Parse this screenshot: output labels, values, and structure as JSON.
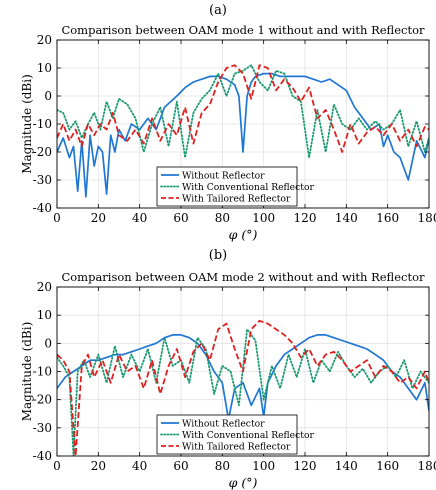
{
  "chart_data": [
    {
      "panel_label": "(a)",
      "type": "line",
      "title": "Comparison between OAM mode 1 without and with Reflector",
      "xlabel": "φ (°)",
      "ylabel": "Magnitude (dBi)",
      "xlim": [
        0,
        180
      ],
      "ylim": [
        -40,
        20
      ],
      "xticks": [
        0,
        20,
        40,
        60,
        80,
        100,
        120,
        140,
        160,
        180
      ],
      "yticks": [
        -40,
        -30,
        -20,
        -10,
        0,
        10,
        20
      ],
      "grid": true,
      "legend_position": "bottom-center",
      "series": [
        {
          "name": "Without Reflector",
          "color": "#1f77d4",
          "style": "solid",
          "x": [
            0,
            3,
            6,
            8,
            10,
            12,
            14,
            16,
            18,
            20,
            22,
            24,
            26,
            28,
            30,
            33,
            36,
            40,
            44,
            48,
            52,
            55,
            58,
            62,
            66,
            70,
            74,
            78,
            82,
            86,
            88,
            90,
            92,
            94,
            96,
            100,
            104,
            108,
            112,
            116,
            120,
            124,
            128,
            132,
            136,
            140,
            144,
            148,
            152,
            156,
            158,
            160,
            163,
            166,
            170,
            174,
            178,
            180
          ],
          "y": [
            -20,
            -15,
            -22,
            -18,
            -34,
            -16,
            -36,
            -14,
            -25,
            -18,
            -20,
            -35,
            -14,
            -20,
            -12,
            -16,
            -10,
            -12,
            -8,
            -12,
            -4,
            -2,
            0,
            3,
            5,
            6,
            7,
            7,
            6,
            4,
            0,
            -20,
            0,
            5,
            7,
            8,
            8,
            7,
            7,
            7,
            7,
            6,
            5,
            6,
            4,
            2,
            -4,
            -8,
            -12,
            -10,
            -18,
            -14,
            -20,
            -22,
            -30,
            -16,
            -22,
            -15
          ]
        },
        {
          "name": "With Conventional Reflector",
          "color": "#1a9a72",
          "style": "dotted",
          "x": [
            0,
            3,
            6,
            9,
            12,
            15,
            18,
            21,
            24,
            27,
            30,
            34,
            38,
            42,
            46,
            50,
            54,
            58,
            62,
            66,
            70,
            74,
            78,
            82,
            86,
            90,
            94,
            98,
            102,
            106,
            110,
            114,
            118,
            122,
            126,
            130,
            134,
            138,
            142,
            146,
            150,
            154,
            158,
            162,
            166,
            170,
            174,
            178,
            180
          ],
          "y": [
            -5,
            -6,
            -12,
            -9,
            -15,
            -10,
            -6,
            -12,
            -2,
            -8,
            -1,
            -3,
            -8,
            -20,
            -10,
            -4,
            -18,
            -2,
            -22,
            -6,
            -1,
            2,
            8,
            0,
            8,
            9,
            11,
            5,
            2,
            9,
            8,
            0,
            -2,
            -22,
            -5,
            -20,
            -3,
            -10,
            -12,
            -8,
            -12,
            -9,
            -12,
            -10,
            -5,
            -18,
            -9,
            -20,
            -15
          ]
        },
        {
          "name": "With Tailored Reflector",
          "color": "#e02020",
          "style": "dashed",
          "x": [
            0,
            3,
            6,
            9,
            12,
            15,
            18,
            21,
            24,
            27,
            30,
            34,
            38,
            42,
            46,
            50,
            54,
            58,
            62,
            66,
            70,
            74,
            78,
            82,
            86,
            90,
            94,
            98,
            102,
            106,
            110,
            114,
            118,
            122,
            126,
            130,
            134,
            138,
            142,
            146,
            150,
            154,
            158,
            162,
            166,
            170,
            174,
            178,
            180
          ],
          "y": [
            -15,
            -10,
            -16,
            -12,
            -18,
            -10,
            -14,
            -10,
            -12,
            -6,
            -14,
            -16,
            -12,
            -17,
            -8,
            -16,
            -10,
            -14,
            -4,
            -17,
            -6,
            -3,
            5,
            10,
            11,
            8,
            -1,
            11,
            10,
            2,
            6,
            3,
            -2,
            3,
            -8,
            -5,
            -12,
            -20,
            -10,
            -17,
            -13,
            -11,
            -14,
            -10,
            -16,
            -12,
            -18,
            -11,
            -12
          ]
        }
      ]
    },
    {
      "panel_label": "(b)",
      "type": "line",
      "title": "Comparison between OAM mode 2 without and with Reflector",
      "xlabel": "φ (°)",
      "ylabel": "Magnitude (dBi)",
      "xlim": [
        0,
        180
      ],
      "ylim": [
        -40,
        20
      ],
      "xticks": [
        0,
        20,
        40,
        60,
        80,
        100,
        120,
        140,
        160,
        180
      ],
      "yticks": [
        -40,
        -30,
        -20,
        -10,
        0,
        10,
        20
      ],
      "grid": true,
      "legend_position": "bottom-center",
      "series": [
        {
          "name": "Without Reflector",
          "color": "#1f77d4",
          "style": "solid",
          "x": [
            0,
            4,
            8,
            12,
            16,
            20,
            24,
            28,
            32,
            36,
            40,
            44,
            48,
            52,
            56,
            60,
            64,
            68,
            72,
            76,
            80,
            83,
            86,
            90,
            94,
            98,
            100,
            102,
            106,
            110,
            114,
            118,
            122,
            126,
            130,
            134,
            138,
            142,
            146,
            150,
            154,
            158,
            162,
            166,
            170,
            174,
            178,
            180
          ],
          "y": [
            -16,
            -12,
            -10,
            -8,
            -6,
            -6,
            -5,
            -4,
            -4,
            -3,
            -2,
            -1,
            0,
            2,
            3,
            3,
            2,
            0,
            -4,
            -10,
            -14,
            -27,
            -16,
            -14,
            -22,
            -16,
            -26,
            -14,
            -8,
            -4,
            -2,
            0,
            2,
            3,
            3,
            2,
            1,
            0,
            -1,
            -2,
            -4,
            -6,
            -10,
            -12,
            -16,
            -20,
            -14,
            -24
          ]
        },
        {
          "name": "With Conventional Reflector",
          "color": "#1a9a72",
          "style": "dotted",
          "x": [
            0,
            3,
            6,
            8,
            10,
            13,
            16,
            20,
            24,
            28,
            32,
            36,
            40,
            44,
            48,
            52,
            56,
            60,
            64,
            68,
            72,
            76,
            80,
            84,
            88,
            92,
            96,
            100,
            104,
            108,
            112,
            116,
            120,
            124,
            128,
            132,
            136,
            140,
            144,
            148,
            152,
            156,
            160,
            164,
            168,
            172,
            176,
            180
          ],
          "y": [
            -5,
            -8,
            -12,
            -40,
            -10,
            -6,
            -12,
            -4,
            -14,
            -1,
            -12,
            -4,
            -10,
            -2,
            -14,
            2,
            -8,
            -6,
            -14,
            2,
            -2,
            -18,
            -8,
            -10,
            -22,
            5,
            1,
            -20,
            -8,
            -16,
            -4,
            -12,
            -2,
            -14,
            -6,
            -10,
            -3,
            -8,
            -12,
            -9,
            -14,
            -10,
            -8,
            -12,
            -6,
            -16,
            -10,
            -14
          ]
        },
        {
          "name": "With Tailored Reflector",
          "color": "#e02020",
          "style": "dashed",
          "x": [
            0,
            3,
            6,
            8,
            9,
            12,
            15,
            18,
            22,
            26,
            30,
            34,
            38,
            42,
            46,
            50,
            54,
            58,
            62,
            66,
            70,
            74,
            78,
            82,
            86,
            90,
            94,
            98,
            102,
            106,
            110,
            114,
            118,
            122,
            126,
            130,
            134,
            138,
            142,
            146,
            150,
            154,
            158,
            162,
            166,
            170,
            174,
            178,
            180
          ],
          "y": [
            -4,
            -6,
            -10,
            -30,
            -40,
            -8,
            -4,
            -12,
            -6,
            -14,
            -4,
            -10,
            -8,
            -16,
            -6,
            -18,
            -8,
            -2,
            -12,
            -3,
            0,
            -6,
            5,
            7,
            -2,
            -10,
            5,
            8,
            7,
            5,
            3,
            0,
            -5,
            -2,
            -8,
            -4,
            -3,
            -6,
            -10,
            -8,
            -6,
            -12,
            -8,
            -10,
            -14,
            -12,
            -16,
            -10,
            -14
          ]
        }
      ]
    }
  ]
}
